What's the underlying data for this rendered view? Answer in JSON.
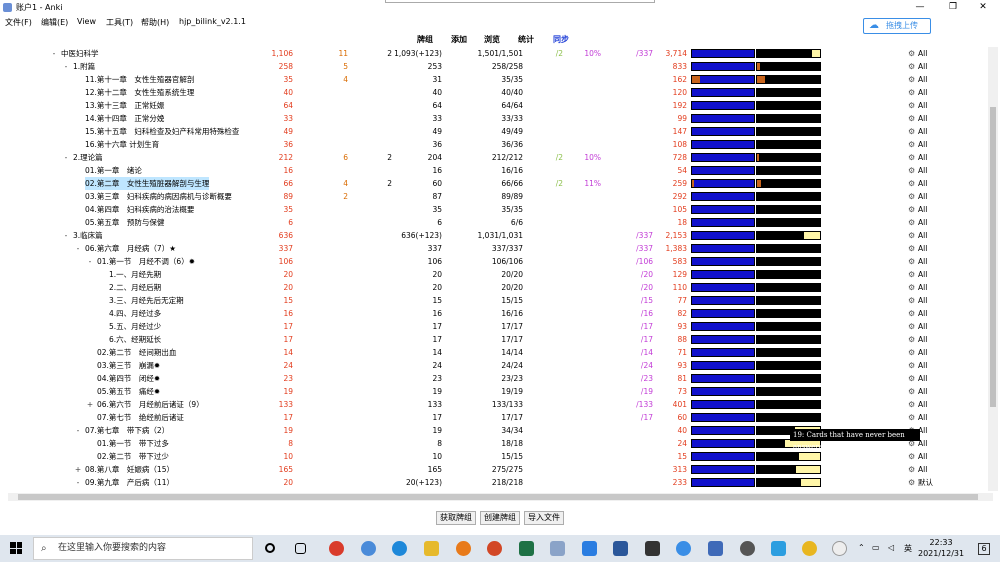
{
  "window": {
    "title": "账户1 - Anki",
    "minimize": "—",
    "maximize": "❐",
    "close": "✕"
  },
  "menu": [
    "文件(F)",
    "编辑(E)",
    "View",
    "工具(T)",
    "帮助(H)",
    "hjp_bilink_v2.1.1"
  ],
  "upload_label": "拖拽上传",
  "columns": [
    "牌组",
    "添加",
    "浏览",
    "统计",
    "同步"
  ],
  "rows": [
    {
      "exp": "-",
      "indent": 0,
      "name": "中医妇科学",
      "c1": "1,106",
      "c2": "11",
      "c3": "2",
      "c4": "1,093(+123)",
      "c5": "",
      "c6": "1,501/1,501",
      "c7": "/2",
      "c8": "10%",
      "c9": "/337",
      "c10": "3,714",
      "b1o": 0,
      "b2y": 12,
      "b2o": 0
    },
    {
      "exp": "-",
      "indent": 1,
      "name": "1.附篇",
      "c1": "258",
      "c2": "5",
      "c3": "",
      "c4": "253",
      "c5": "",
      "c6": "258/258",
      "c7": "",
      "c8": "",
      "c9": "",
      "c10": "833",
      "b1o": 0,
      "b2y": 0,
      "b2o": 3
    },
    {
      "exp": "",
      "indent": 2,
      "name": "11.第十一章　女性生殖器官解剖",
      "c1": "35",
      "c2": "4",
      "c3": "",
      "c4": "31",
      "c5": "",
      "c6": "35/35",
      "c7": "",
      "c8": "",
      "c9": "",
      "c10": "162",
      "b1o": 8,
      "b2y": 0,
      "b2o": 8
    },
    {
      "exp": "",
      "indent": 2,
      "name": "12.第十二章　女性生殖系统生理",
      "c1": "40",
      "c2": "",
      "c3": "",
      "c4": "40",
      "c5": "",
      "c6": "40/40",
      "c7": "",
      "c8": "",
      "c9": "",
      "c10": "120",
      "b1o": 0,
      "b2y": 0,
      "b2o": 0
    },
    {
      "exp": "",
      "indent": 2,
      "name": "13.第十三章　正常妊娠",
      "c1": "64",
      "c2": "",
      "c3": "",
      "c4": "64",
      "c5": "",
      "c6": "64/64",
      "c7": "",
      "c8": "",
      "c9": "",
      "c10": "192",
      "b1o": 0,
      "b2y": 0,
      "b2o": 0
    },
    {
      "exp": "",
      "indent": 2,
      "name": "14.第十四章　正常分娩",
      "c1": "33",
      "c2": "",
      "c3": "",
      "c4": "33",
      "c5": "",
      "c6": "33/33",
      "c7": "",
      "c8": "",
      "c9": "",
      "c10": "99",
      "b1o": 0,
      "b2y": 0,
      "b2o": 0
    },
    {
      "exp": "",
      "indent": 2,
      "name": "15.第十五章　妇科检查及妇产科常用特殊检查",
      "c1": "49",
      "c2": "",
      "c3": "",
      "c4": "49",
      "c5": "",
      "c6": "49/49",
      "c7": "",
      "c8": "",
      "c9": "",
      "c10": "147",
      "b1o": 0,
      "b2y": 0,
      "b2o": 0
    },
    {
      "exp": "",
      "indent": 2,
      "name": "16.第十六章 计划生育",
      "c1": "36",
      "c2": "",
      "c3": "",
      "c4": "36",
      "c5": "",
      "c6": "36/36",
      "c7": "",
      "c8": "",
      "c9": "",
      "c10": "108",
      "b1o": 0,
      "b2y": 0,
      "b2o": 0
    },
    {
      "exp": "-",
      "indent": 1,
      "name": "2.理论篇",
      "c1": "212",
      "c2": "6",
      "c3": "2",
      "c4": "204",
      "c5": "",
      "c6": "212/212",
      "c7": "/2",
      "c8": "10%",
      "c9": "",
      "c10": "728",
      "b1o": 0,
      "b2y": 0,
      "b2o": 2
    },
    {
      "exp": "",
      "indent": 2,
      "name": "01.第一章　绪论",
      "c1": "16",
      "c2": "",
      "c3": "",
      "c4": "16",
      "c5": "",
      "c6": "16/16",
      "c7": "",
      "c8": "",
      "c9": "",
      "c10": "54",
      "b1o": 0,
      "b2y": 0,
      "b2o": 0
    },
    {
      "exp": "",
      "indent": 2,
      "name": "02.第二章　女性生殖脏器解剖与生理",
      "hl": true,
      "c1": "66",
      "c2": "4",
      "c3": "2",
      "c4": "60",
      "c5": "",
      "c6": "66/66",
      "c7": "/2",
      "c8": "11%",
      "c9": "",
      "c10": "259",
      "b1o": 2,
      "b2y": 0,
      "b2o": 4
    },
    {
      "exp": "",
      "indent": 2,
      "name": "03.第三章　妇科疾病的病因病机与诊断概要",
      "c1": "89",
      "c2": "2",
      "c3": "",
      "c4": "87",
      "c5": "",
      "c6": "89/89",
      "c7": "",
      "c8": "",
      "c9": "",
      "c10": "292",
      "b1o": 0,
      "b2y": 0,
      "b2o": 0
    },
    {
      "exp": "",
      "indent": 2,
      "name": "04.第四章　妇科疾病的治法概要",
      "c1": "35",
      "c2": "",
      "c3": "",
      "c4": "35",
      "c5": "",
      "c6": "35/35",
      "c7": "",
      "c8": "",
      "c9": "",
      "c10": "105",
      "b1o": 0,
      "b2y": 0,
      "b2o": 0
    },
    {
      "exp": "",
      "indent": 2,
      "name": "05.第五章　预防与保健",
      "c1": "6",
      "c2": "",
      "c3": "",
      "c4": "6",
      "c5": "",
      "c6": "6/6",
      "c7": "",
      "c8": "",
      "c9": "",
      "c10": "18",
      "b1o": 0,
      "b2y": 0,
      "b2o": 0
    },
    {
      "exp": "-",
      "indent": 1,
      "name": "3.临床篇",
      "c1": "636",
      "c2": "",
      "c3": "",
      "c4": "636(+123)",
      "c5": "",
      "c6": "1,031/1,031",
      "c7": "",
      "c8": "",
      "c9": "/337",
      "c10": "2,153",
      "b1o": 0,
      "b2y": 25,
      "b2o": 0
    },
    {
      "exp": "-",
      "indent": 2,
      "name": "06.第六章　月经病（7）★",
      "c1": "337",
      "c2": "",
      "c3": "",
      "c4": "337",
      "c5": "",
      "c6": "337/337",
      "c7": "",
      "c8": "",
      "c9": "/337",
      "c10": "1,383",
      "b1o": 0,
      "b2y": 0,
      "b2o": 0
    },
    {
      "exp": "-",
      "indent": 3,
      "name": "01.第一节　月经不调（6）✹",
      "c1": "106",
      "c2": "",
      "c3": "",
      "c4": "106",
      "c5": "",
      "c6": "106/106",
      "c7": "",
      "c8": "",
      "c9": "/106",
      "c10": "583",
      "b1o": 0,
      "b2y": 0,
      "b2o": 0
    },
    {
      "exp": "",
      "indent": 4,
      "name": "1.一、月经先期",
      "c1": "20",
      "c2": "",
      "c3": "",
      "c4": "20",
      "c5": "",
      "c6": "20/20",
      "c7": "",
      "c8": "",
      "c9": "/20",
      "c10": "129",
      "b1o": 0,
      "b2y": 0,
      "b2o": 0
    },
    {
      "exp": "",
      "indent": 4,
      "name": "2.二、月经后期",
      "c1": "20",
      "c2": "",
      "c3": "",
      "c4": "20",
      "c5": "",
      "c6": "20/20",
      "c7": "",
      "c8": "",
      "c9": "/20",
      "c10": "110",
      "b1o": 0,
      "b2y": 0,
      "b2o": 0
    },
    {
      "exp": "",
      "indent": 4,
      "name": "3.三、月经先后无定期",
      "c1": "15",
      "c2": "",
      "c3": "",
      "c4": "15",
      "c5": "",
      "c6": "15/15",
      "c7": "",
      "c8": "",
      "c9": "/15",
      "c10": "77",
      "b1o": 0,
      "b2y": 0,
      "b2o": 0
    },
    {
      "exp": "",
      "indent": 4,
      "name": "4.四、月经过多",
      "c1": "16",
      "c2": "",
      "c3": "",
      "c4": "16",
      "c5": "",
      "c6": "16/16",
      "c7": "",
      "c8": "",
      "c9": "/16",
      "c10": "82",
      "b1o": 0,
      "b2y": 0,
      "b2o": 0
    },
    {
      "exp": "",
      "indent": 4,
      "name": "5.五、月经过少",
      "c1": "17",
      "c2": "",
      "c3": "",
      "c4": "17",
      "c5": "",
      "c6": "17/17",
      "c7": "",
      "c8": "",
      "c9": "/17",
      "c10": "93",
      "b1o": 0,
      "b2y": 0,
      "b2o": 0
    },
    {
      "exp": "",
      "indent": 4,
      "name": "6.六、经期延长",
      "c1": "17",
      "c2": "",
      "c3": "",
      "c4": "17",
      "c5": "",
      "c6": "17/17",
      "c7": "",
      "c8": "",
      "c9": "/17",
      "c10": "88",
      "b1o": 0,
      "b2y": 0,
      "b2o": 0
    },
    {
      "exp": "",
      "indent": 3,
      "name": "02.第二节　经间期出血",
      "c1": "14",
      "c2": "",
      "c3": "",
      "c4": "14",
      "c5": "",
      "c6": "14/14",
      "c7": "",
      "c8": "",
      "c9": "/14",
      "c10": "71",
      "b1o": 0,
      "b2y": 0,
      "b2o": 0
    },
    {
      "exp": "",
      "indent": 3,
      "name": "03.第三节　崩漏✹",
      "c1": "24",
      "c2": "",
      "c3": "",
      "c4": "24",
      "c5": "",
      "c6": "24/24",
      "c7": "",
      "c8": "",
      "c9": "/24",
      "c10": "93",
      "b1o": 0,
      "b2y": 0,
      "b2o": 0
    },
    {
      "exp": "",
      "indent": 3,
      "name": "04.第四节　闭经✹",
      "c1": "23",
      "c2": "",
      "c3": "",
      "c4": "23",
      "c5": "",
      "c6": "23/23",
      "c7": "",
      "c8": "",
      "c9": "/23",
      "c10": "81",
      "b1o": 0,
      "b2y": 0,
      "b2o": 0
    },
    {
      "exp": "",
      "indent": 3,
      "name": "05.第五节　痛经✹",
      "c1": "19",
      "c2": "",
      "c3": "",
      "c4": "19",
      "c5": "",
      "c6": "19/19",
      "c7": "",
      "c8": "",
      "c9": "/19",
      "c10": "73",
      "b1o": 0,
      "b2y": 0,
      "b2o": 0
    },
    {
      "exp": "+",
      "indent": 3,
      "name": "06.第六节　月经前后诸证（9）",
      "c1": "133",
      "c2": "",
      "c3": "",
      "c4": "133",
      "c5": "",
      "c6": "133/133",
      "c7": "",
      "c8": "",
      "c9": "/133",
      "c10": "401",
      "b1o": 0,
      "b2y": 0,
      "b2o": 0
    },
    {
      "exp": "",
      "indent": 3,
      "name": "07.第七节　绝经前后诸证",
      "c1": "17",
      "c2": "",
      "c3": "",
      "c4": "17",
      "c5": "",
      "c6": "17/17",
      "c7": "",
      "c8": "",
      "c9": "/17",
      "c10": "60",
      "b1o": 0,
      "b2y": 0,
      "b2o": 0
    },
    {
      "exp": "-",
      "indent": 2,
      "name": "07.第七章　带下病（2）",
      "c1": "19",
      "c2": "",
      "c3": "",
      "c4": "19",
      "c5": "",
      "c6": "34/34",
      "c7": "",
      "c8": "",
      "c9": "",
      "c10": "40",
      "b1o": 0,
      "b2y": 40,
      "b2o": 0
    },
    {
      "exp": "",
      "indent": 3,
      "name": "01.第一节　带下过多",
      "c1": "8",
      "c2": "",
      "c3": "",
      "c4": "8",
      "c5": "",
      "c6": "18/18",
      "c7": "",
      "c8": "",
      "c9": "",
      "c10": "24",
      "b1o": 0,
      "b2y": 55,
      "b2o": 0
    },
    {
      "exp": "",
      "indent": 3,
      "name": "02.第二节　带下过少",
      "c1": "10",
      "c2": "",
      "c3": "",
      "c4": "10",
      "c5": "",
      "c6": "15/15",
      "c7": "",
      "c8": "",
      "c9": "",
      "c10": "15",
      "b1o": 0,
      "b2y": 33,
      "b2o": 0
    },
    {
      "exp": "+",
      "indent": 2,
      "name": "08.第八章　妊娠病（15）",
      "c1": "165",
      "c2": "",
      "c3": "",
      "c4": "165",
      "c5": "",
      "c6": "275/275",
      "c7": "",
      "c8": "",
      "c9": "",
      "c10": "313",
      "b1o": 0,
      "b2y": 38,
      "b2o": 0
    },
    {
      "exp": "-",
      "indent": 2,
      "name": "09.第九章　产后病（11）",
      "c1": "20",
      "c2": "",
      "c3": "",
      "c4": "20(+123)",
      "c5": "",
      "c6": "218/218",
      "c7": "",
      "c8": "",
      "c9": "",
      "c10": "233",
      "b1o": 0,
      "b2y": 30,
      "b2o": 0
    }
  ],
  "option_label": "All",
  "last_option_label": "默认",
  "tooltip": "19: Cards that have never been answered",
  "buttons": [
    "获取牌组",
    "创建牌组",
    "导入文件"
  ],
  "taskbar": {
    "search_placeholder": "在这里输入你要搜索的内容",
    "ime": "英",
    "time": "22:33",
    "date": "2021/12/31",
    "badge": "6"
  }
}
